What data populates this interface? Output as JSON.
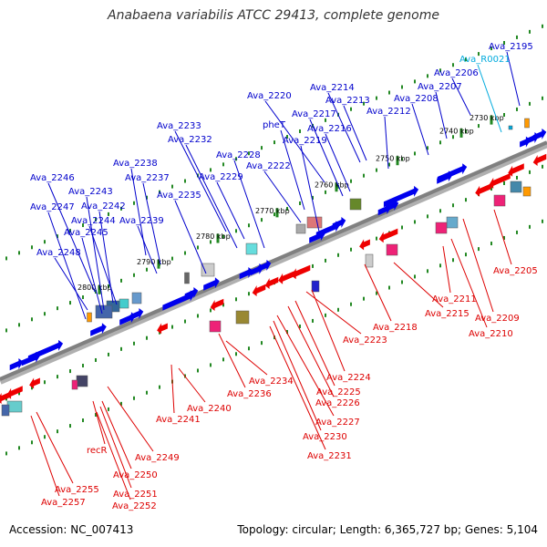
{
  "title": "Anabaena variabilis ATCC 29413, complete genome",
  "footer": {
    "accession": "Accession: NC_007413",
    "topology": "Topology: circular; Length: 6,365,727 bp; Genes: 5,104"
  },
  "colors": {
    "forward_label": "#0000cc",
    "reverse_label": "#dd0000",
    "rna_label": "#00aadd",
    "forward_gene": "#0000ee",
    "reverse_gene": "#ee0000",
    "ruler_tick": "#228822",
    "backbone": "#808080"
  },
  "ruler": [
    {
      "label": "2730 kbp",
      "pos": 2730
    },
    {
      "label": "2740 kbp",
      "pos": 2740
    },
    {
      "label": "2750 kbp",
      "pos": 2750
    },
    {
      "label": "2760 kbp",
      "pos": 2760
    },
    {
      "label": "2770 kbp",
      "pos": 2770
    },
    {
      "label": "2780 kbp",
      "pos": 2780
    },
    {
      "label": "2790 kbp",
      "pos": 2790
    },
    {
      "label": "2800 kbp",
      "pos": 2800
    }
  ],
  "forward_genes": [
    {
      "label": "Ava_2195",
      "kind": "gene"
    },
    {
      "label": "Ava_R0021",
      "kind": "rna"
    },
    {
      "label": "Ava_2206",
      "kind": "gene"
    },
    {
      "label": "Ava_2207",
      "kind": "gene"
    },
    {
      "label": "Ava_2208",
      "kind": "gene"
    },
    {
      "label": "Ava_2212",
      "kind": "gene"
    },
    {
      "label": "Ava_2214",
      "kind": "gene"
    },
    {
      "label": "Ava_2213",
      "kind": "gene"
    },
    {
      "label": "Ava_2220",
      "kind": "gene"
    },
    {
      "label": "Ava_2217",
      "kind": "gene"
    },
    {
      "label": "Ava_2216",
      "kind": "gene"
    },
    {
      "label": "pheT",
      "kind": "gene"
    },
    {
      "label": "Ava_2219",
      "kind": "gene"
    },
    {
      "label": "Ava_2233",
      "kind": "gene"
    },
    {
      "label": "Ava_2232",
      "kind": "gene"
    },
    {
      "label": "Ava_2228",
      "kind": "gene"
    },
    {
      "label": "Ava_2222",
      "kind": "gene"
    },
    {
      "label": "Ava_2238",
      "kind": "gene"
    },
    {
      "label": "Ava_2237",
      "kind": "gene"
    },
    {
      "label": "Ava_2229",
      "kind": "gene"
    },
    {
      "label": "Ava_2246",
      "kind": "gene"
    },
    {
      "label": "Ava_2235",
      "kind": "gene"
    },
    {
      "label": "Ava_2243",
      "kind": "gene"
    },
    {
      "label": "Ava_2247",
      "kind": "gene"
    },
    {
      "label": "Ava_2242",
      "kind": "gene"
    },
    {
      "label": "Ava_2244",
      "kind": "gene"
    },
    {
      "label": "Ava_2239",
      "kind": "gene"
    },
    {
      "label": "Ava_2245",
      "kind": "gene"
    },
    {
      "label": "Ava_2248",
      "kind": "gene"
    }
  ],
  "reverse_genes": [
    {
      "label": "Ava_2205"
    },
    {
      "label": "Ava_2211"
    },
    {
      "label": "Ava_2209"
    },
    {
      "label": "Ava_2210"
    },
    {
      "label": "Ava_2215"
    },
    {
      "label": "Ava_2218"
    },
    {
      "label": "Ava_2223"
    },
    {
      "label": "Ava_2224"
    },
    {
      "label": "Ava_2225"
    },
    {
      "label": "Ava_2226"
    },
    {
      "label": "Ava_2227"
    },
    {
      "label": "Ava_2230"
    },
    {
      "label": "Ava_2231"
    },
    {
      "label": "Ava_2234"
    },
    {
      "label": "Ava_2236"
    },
    {
      "label": "Ava_2240"
    },
    {
      "label": "Ava_2241"
    },
    {
      "label": "Ava_2249"
    },
    {
      "label": "recR"
    },
    {
      "label": "Ava_2250"
    },
    {
      "label": "Ava_2251"
    },
    {
      "label": "Ava_2252"
    },
    {
      "label": "Ava_2255"
    },
    {
      "label": "Ava_2257"
    }
  ]
}
